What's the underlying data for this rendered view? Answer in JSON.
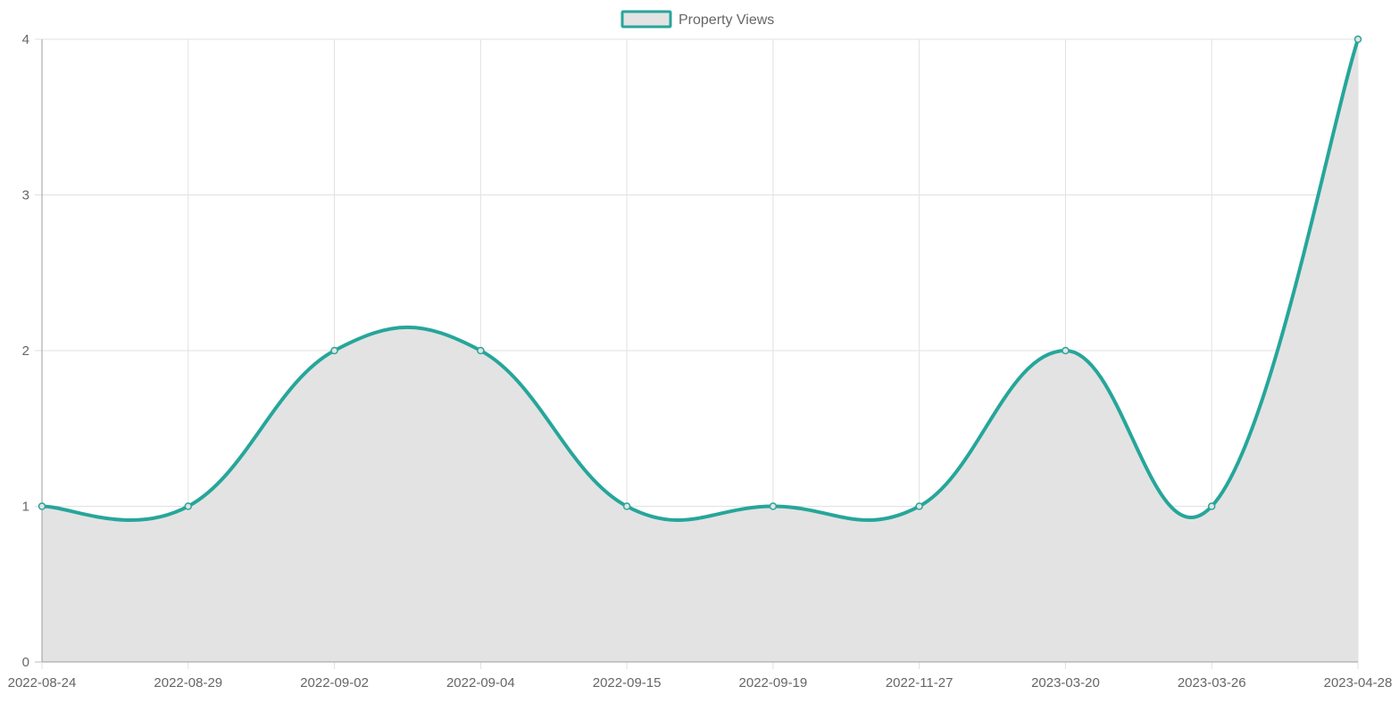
{
  "chart_data": {
    "type": "line",
    "categories": [
      "2022-08-24",
      "2022-08-29",
      "2022-09-02",
      "2022-09-04",
      "2022-09-15",
      "2022-09-19",
      "2022-11-27",
      "2023-03-20",
      "2023-03-26",
      "2023-04-28"
    ],
    "series": [
      {
        "name": "Property Views",
        "values": [
          1,
          1,
          2,
          2,
          1,
          1,
          1,
          2,
          1,
          4
        ],
        "color": "#26a69a",
        "fill": "#e3e3e3",
        "filled": true,
        "smooth": true
      }
    ],
    "yticks": [
      "0",
      "1",
      "2",
      "3",
      "4"
    ],
    "ylim": [
      0,
      4
    ],
    "grid": true,
    "legend": {
      "position": "top-center",
      "label": "Property Views"
    }
  }
}
